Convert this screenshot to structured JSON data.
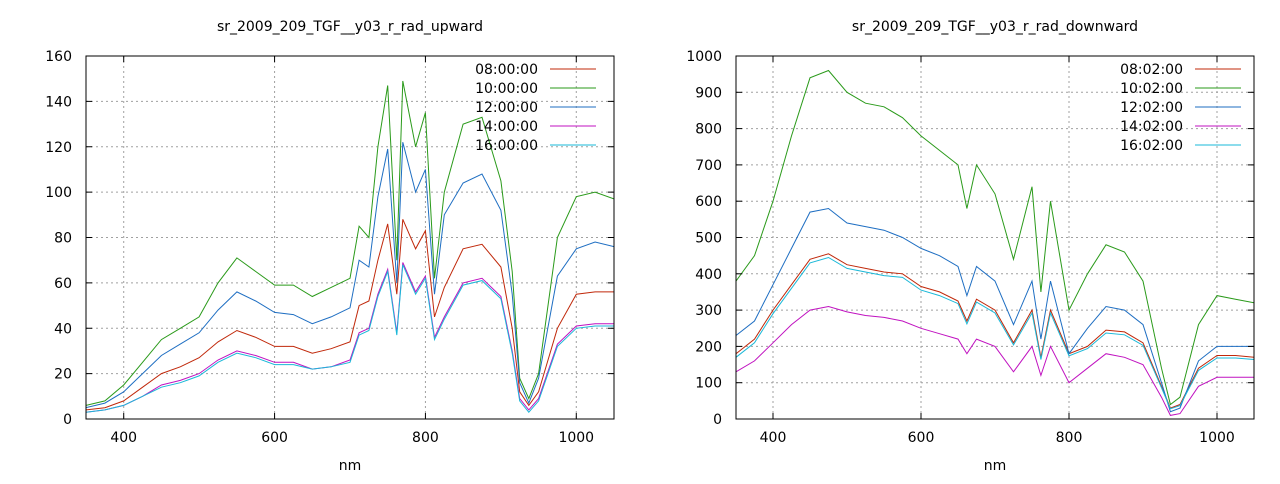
{
  "chart_data": [
    {
      "type": "line",
      "title": "sr_2009_209_TGF__y03_r_rad_upward",
      "xlabel": "nm",
      "ylabel": "",
      "xlim": [
        350,
        1050
      ],
      "ylim": [
        0,
        160
      ],
      "xticks": [
        400,
        600,
        800,
        1000
      ],
      "yticks": [
        0,
        20,
        40,
        60,
        80,
        100,
        120,
        140,
        160
      ],
      "grid": true,
      "legend": "top-right",
      "x": [
        350,
        375,
        400,
        425,
        450,
        475,
        500,
        525,
        550,
        575,
        600,
        625,
        650,
        675,
        700,
        712,
        725,
        737,
        750,
        762,
        770,
        787,
        800,
        812,
        825,
        850,
        875,
        900,
        915,
        925,
        937,
        950,
        975,
        1000,
        1025,
        1050
      ],
      "series": [
        {
          "name": "08:00:00",
          "color": "#c0280a",
          "values": [
            4,
            5,
            8,
            14,
            20,
            23,
            27,
            34,
            39,
            36,
            32,
            32,
            29,
            31,
            34,
            50,
            52,
            70,
            86,
            55,
            88,
            75,
            83,
            45,
            58,
            75,
            77,
            67,
            40,
            12,
            6,
            12,
            40,
            55,
            56,
            56
          ]
        },
        {
          "name": "10:00:00",
          "color": "#2a9a1a",
          "values": [
            6,
            8,
            15,
            25,
            35,
            40,
            45,
            60,
            71,
            65,
            59,
            59,
            54,
            58,
            62,
            85,
            80,
            120,
            147,
            70,
            149,
            120,
            135,
            62,
            100,
            130,
            133,
            105,
            65,
            18,
            9,
            20,
            80,
            98,
            100,
            97
          ]
        },
        {
          "name": "12:00:00",
          "color": "#1e6ec2",
          "values": [
            5,
            7,
            12,
            20,
            28,
            33,
            38,
            48,
            56,
            52,
            47,
            46,
            42,
            45,
            49,
            70,
            67,
            98,
            119,
            60,
            122,
            100,
            110,
            55,
            90,
            104,
            108,
            92,
            55,
            16,
            7,
            18,
            63,
            75,
            78,
            76
          ]
        },
        {
          "name": "14:00:00",
          "color": "#c012c0",
          "values": [
            3,
            4,
            6,
            10,
            15,
            17,
            20,
            26,
            30,
            28,
            25,
            25,
            22,
            23,
            26,
            38,
            40,
            55,
            66,
            38,
            69,
            56,
            63,
            36,
            45,
            60,
            62,
            54,
            30,
            9,
            4,
            9,
            33,
            41,
            42,
            42
          ]
        },
        {
          "name": "16:00:00",
          "color": "#1ab8d8",
          "values": [
            3,
            4,
            6,
            10,
            14,
            16,
            19,
            25,
            29,
            27,
            24,
            24,
            22,
            23,
            25,
            37,
            39,
            54,
            65,
            37,
            68,
            55,
            62,
            35,
            44,
            59,
            61,
            53,
            29,
            8,
            3,
            8,
            32,
            40,
            41,
            41
          ]
        }
      ]
    },
    {
      "type": "line",
      "title": "sr_2009_209_TGF__y03_r_rad_downward",
      "xlabel": "nm",
      "ylabel": "",
      "xlim": [
        350,
        1050
      ],
      "ylim": [
        0,
        1000
      ],
      "xticks": [
        400,
        600,
        800,
        1000
      ],
      "yticks": [
        0,
        100,
        200,
        300,
        400,
        500,
        600,
        700,
        800,
        900,
        1000
      ],
      "grid": true,
      "legend": "top-right",
      "x": [
        350,
        375,
        400,
        425,
        450,
        475,
        500,
        525,
        550,
        575,
        600,
        625,
        650,
        662,
        675,
        700,
        725,
        750,
        762,
        775,
        800,
        825,
        850,
        875,
        900,
        925,
        937,
        950,
        975,
        1000,
        1025,
        1050
      ],
      "series": [
        {
          "name": "08:02:00",
          "color": "#c0280a",
          "values": [
            180,
            220,
            300,
            370,
            440,
            455,
            425,
            415,
            405,
            400,
            365,
            350,
            325,
            270,
            330,
            300,
            210,
            300,
            170,
            300,
            180,
            200,
            245,
            240,
            210,
            90,
            30,
            40,
            140,
            175,
            175,
            170
          ]
        },
        {
          "name": "10:02:00",
          "color": "#2a9a1a",
          "values": [
            380,
            450,
            600,
            780,
            940,
            960,
            900,
            870,
            860,
            830,
            780,
            740,
            700,
            580,
            700,
            620,
            440,
            640,
            350,
            600,
            300,
            400,
            480,
            460,
            380,
            140,
            40,
            60,
            260,
            340,
            330,
            320
          ]
        },
        {
          "name": "12:02:00",
          "color": "#1e6ec2",
          "values": [
            230,
            270,
            370,
            470,
            570,
            580,
            540,
            530,
            520,
            500,
            470,
            450,
            420,
            340,
            420,
            380,
            260,
            380,
            220,
            380,
            180,
            250,
            310,
            300,
            260,
            100,
            20,
            30,
            160,
            200,
            200,
            200
          ]
        },
        {
          "name": "14:02:00",
          "color": "#c012c0",
          "values": [
            130,
            160,
            210,
            260,
            300,
            310,
            295,
            285,
            280,
            270,
            250,
            235,
            220,
            180,
            220,
            200,
            130,
            200,
            120,
            200,
            100,
            140,
            180,
            170,
            150,
            60,
            10,
            15,
            90,
            115,
            115,
            115
          ]
        },
        {
          "name": "16:02:00",
          "color": "#1ab8d8",
          "values": [
            170,
            210,
            290,
            360,
            430,
            445,
            415,
            405,
            395,
            390,
            355,
            340,
            318,
            262,
            322,
            292,
            204,
            292,
            164,
            292,
            174,
            194,
            237,
            232,
            203,
            86,
            28,
            37,
            134,
            168,
            168,
            164
          ]
        }
      ]
    }
  ]
}
